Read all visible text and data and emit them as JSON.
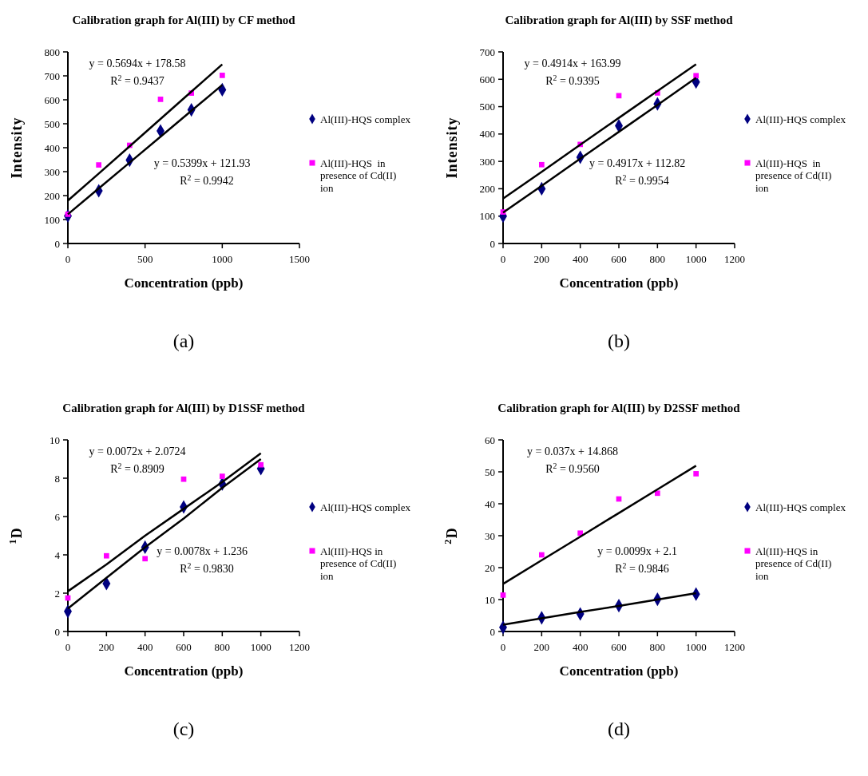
{
  "chart_data": [
    {
      "type": "scatter",
      "title": "Calibration graph for Al(III) by CF method",
      "xlabel": "Concentration (ppb)",
      "ylabel": "Intensity",
      "x": [
        0,
        200,
        400,
        600,
        800,
        1000
      ],
      "xlim": [
        0,
        1500
      ],
      "xticks": [
        0,
        500,
        1000,
        1500
      ],
      "ylim": [
        0,
        800
      ],
      "yticks": [
        0,
        100,
        200,
        300,
        400,
        500,
        600,
        700,
        800
      ],
      "grid": false,
      "legend": "right",
      "series": [
        {
          "name": "Al(III)-HQS complex",
          "color": "#000080",
          "marker": "diamond",
          "values": [
            115,
            220,
            348,
            470,
            558,
            642
          ]
        },
        {
          "name": "Al(III)-HQS  in presence of Cd(II) ion",
          "color": "#ff00ff",
          "marker": "square",
          "values": [
            122,
            328,
            410,
            602,
            628,
            702
          ]
        },
        {
          "type": "line",
          "color": "#000000",
          "marker": "none",
          "values": [
            179,
            292,
            406,
            520,
            634,
            748
          ]
        },
        {
          "type": "line",
          "color": "#000000",
          "marker": "none",
          "values": [
            122,
            230,
            338,
            446,
            554,
            662
          ]
        }
      ],
      "annotations": [
        "y = 0.5694x + 178.58",
        "R$^{2}$ = 0.9437",
        "y = 0.5399x + 121.93",
        "R$^{2}$ = 0.9942",
        "(a)"
      ]
    },
    {
      "type": "scatter",
      "title": "Calibration graph for Al(III) by SSF method",
      "xlabel": "Concentration (ppb)",
      "ylabel": "Intensity",
      "x": [
        0,
        200,
        400,
        600,
        800,
        1000
      ],
      "xlim": [
        0,
        1200
      ],
      "xticks": [
        0,
        200,
        400,
        600,
        800,
        1000,
        1200
      ],
      "ylim": [
        0,
        700
      ],
      "yticks": [
        0,
        100,
        200,
        300,
        400,
        500,
        600,
        700
      ],
      "grid": false,
      "legend": "right",
      "series": [
        {
          "name": "Al(III)-HQS complex",
          "color": "#000080",
          "marker": "diamond",
          "values": [
            100,
            200,
            315,
            430,
            510,
            590
          ]
        },
        {
          "name": "Al(III)-HQS  in presence of Cd(II) ion",
          "color": "#ff00ff",
          "marker": "square",
          "values": [
            115,
            288,
            362,
            540,
            550,
            613
          ]
        },
        {
          "type": "line",
          "color": "#000000",
          "marker": "none",
          "values": [
            164,
            262,
            361,
            459,
            557,
            655
          ]
        },
        {
          "type": "line",
          "color": "#000000",
          "marker": "none",
          "values": [
            113,
            211,
            310,
            408,
            506,
            605
          ]
        }
      ],
      "annotations": [
        "y = 0.4914x + 163.99",
        "R$^{2}$ = 0.9395",
        "y = 0.4917x + 112.82",
        "R$^{2}$ = 0.9954",
        "(b)"
      ]
    },
    {
      "type": "scatter",
      "title": "Calibration graph for Al(III) by D1SSF method",
      "xlabel": "Concentration (ppb)",
      "ylabel": "$^{1}$D",
      "x": [
        0,
        200,
        400,
        600,
        800,
        1000
      ],
      "xlim": [
        0,
        1200
      ],
      "xticks": [
        0,
        200,
        400,
        600,
        800,
        1000,
        1200
      ],
      "ylim": [
        0,
        10
      ],
      "yticks": [
        0,
        2,
        4,
        6,
        8,
        10
      ],
      "grid": false,
      "legend": "right",
      "series": [
        {
          "name": "Al(III)-HQS complex",
          "color": "#000080",
          "marker": "diamond",
          "values": [
            1.05,
            2.5,
            4.4,
            6.5,
            7.7,
            8.5
          ]
        },
        {
          "name": "Al(III)-HQS in presence of Cd(II) ion",
          "color": "#ff00ff",
          "marker": "square",
          "values": [
            1.75,
            3.95,
            3.8,
            7.95,
            8.1,
            8.7
          ]
        },
        {
          "type": "line",
          "color": "#000000",
          "marker": "none",
          "values": [
            2.1,
            3.5,
            5.0,
            6.4,
            7.8,
            9.3
          ]
        },
        {
          "type": "line",
          "color": "#000000",
          "marker": "none",
          "values": [
            1.2,
            2.8,
            4.4,
            5.9,
            7.5,
            9.0
          ]
        }
      ],
      "annotations": [
        "y = 0.0072x + 2.0724",
        "R$^{2}$ = 0.8909",
        "y = 0.0078x + 1.236",
        "R$^{2}$ = 0.9830",
        "(c)"
      ]
    },
    {
      "type": "scatter",
      "title": "Calibration graph for Al(III) by D2SSF method",
      "xlabel": "Concentration (ppb)",
      "ylabel": "$^{2}$D",
      "x": [
        0,
        200,
        400,
        600,
        800,
        1000
      ],
      "xlim": [
        0,
        1200
      ],
      "xticks": [
        0,
        200,
        400,
        600,
        800,
        1000,
        1200
      ],
      "ylim": [
        0,
        60
      ],
      "yticks": [
        0,
        10,
        20,
        30,
        40,
        50,
        60
      ],
      "grid": false,
      "legend": "right",
      "series": [
        {
          "name": "Al(III)-HQS complex",
          "color": "#000080",
          "marker": "diamond",
          "values": [
            1.3,
            4.3,
            5.5,
            8.1,
            10.1,
            11.7
          ]
        },
        {
          "name": "Al(III)-HQS in presence of Cd(II) ion",
          "color": "#ff00ff",
          "marker": "square",
          "values": [
            11.4,
            24,
            30.8,
            41.5,
            43.3,
            49.4
          ]
        },
        {
          "type": "line",
          "color": "#000000",
          "marker": "none",
          "values": [
            14.9,
            22.3,
            29.7,
            37.1,
            44.5,
            51.9
          ]
        },
        {
          "type": "line",
          "color": "#000000",
          "marker": "none",
          "values": [
            2.1,
            4.1,
            6.1,
            8.0,
            10.0,
            12.0
          ]
        }
      ],
      "annotations": [
        "y = 0.037x + 14.868",
        "R$^{2}$ = 0.9560",
        "y = 0.0099x + 2.1",
        "R$^{2}$ = 0.9846",
        "(d)"
      ]
    }
  ]
}
